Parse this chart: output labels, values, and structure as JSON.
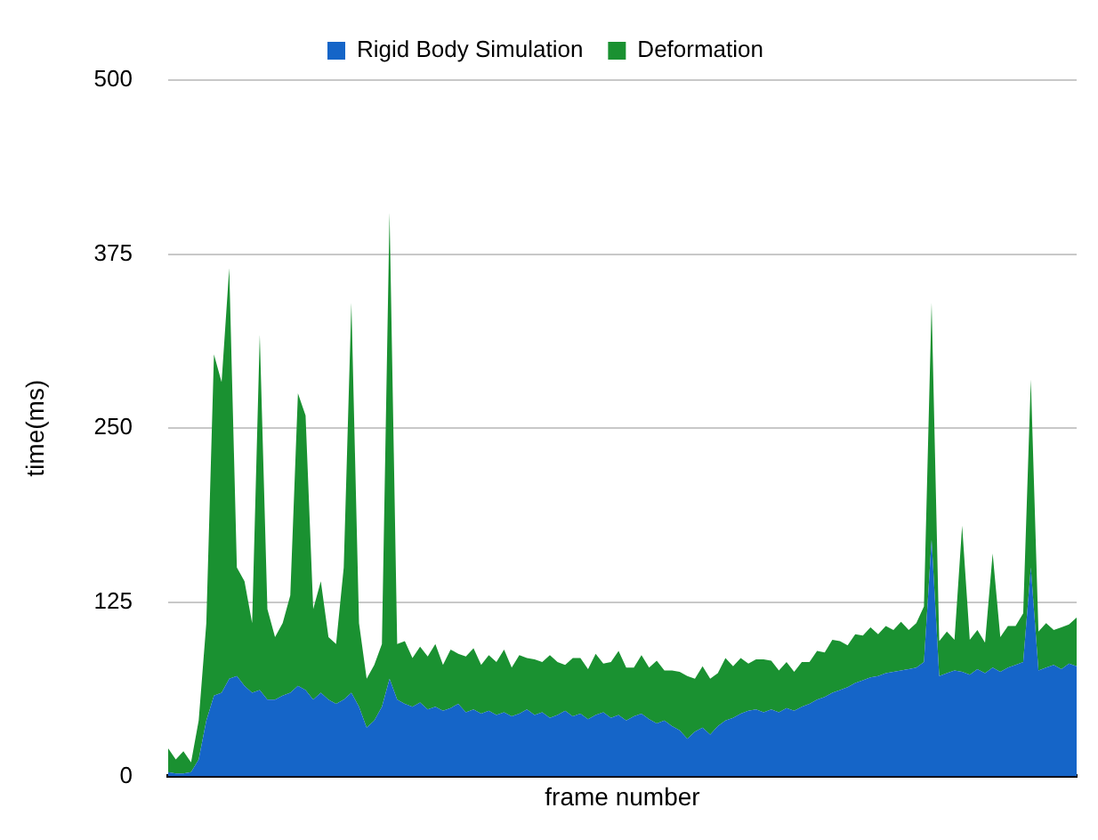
{
  "chart_data": {
    "type": "area",
    "stacked": true,
    "xlabel": "frame number",
    "ylabel": "time(ms)",
    "legend": "top",
    "grid": "y",
    "tick_labels": "y",
    "ylim": [
      0,
      500
    ],
    "yticks": [
      0,
      125,
      250,
      375,
      500
    ],
    "categories": [
      null,
      null,
      null,
      null,
      null,
      null,
      null,
      null,
      null,
      null,
      null,
      null,
      null,
      null,
      null,
      null,
      null,
      null,
      null,
      null,
      null,
      null,
      null,
      null,
      null,
      null,
      null,
      null,
      null,
      null,
      null,
      null,
      null,
      null,
      null,
      null,
      null,
      null,
      null,
      null,
      null,
      null,
      null,
      null,
      null,
      null,
      null,
      null,
      null,
      null,
      null,
      null,
      null,
      null,
      null,
      null,
      null,
      null,
      null,
      null,
      null,
      null,
      null,
      null,
      null,
      null,
      null,
      null,
      null,
      null,
      null,
      null,
      null,
      null,
      null,
      null,
      null,
      null,
      null,
      null,
      null,
      null,
      null,
      null,
      null,
      null,
      null,
      null,
      null,
      null,
      null,
      null,
      null,
      null,
      null,
      null,
      null,
      null,
      null,
      null,
      null,
      null,
      null,
      null,
      null,
      null,
      null,
      null,
      null,
      null,
      null,
      null,
      null,
      null,
      null,
      null,
      null,
      null,
      null,
      null
    ],
    "series": [
      {
        "name": "Rigid Body Simulation",
        "color": "#1565c8",
        "values": [
          3,
          2,
          2,
          3,
          12,
          40,
          58,
          60,
          70,
          72,
          65,
          60,
          62,
          55,
          55,
          58,
          60,
          65,
          62,
          55,
          60,
          55,
          52,
          55,
          60,
          50,
          35,
          40,
          50,
          70,
          55,
          52,
          50,
          53,
          48,
          50,
          47,
          49,
          52,
          46,
          48,
          45,
          47,
          44,
          46,
          43,
          45,
          48,
          44,
          46,
          42,
          44,
          47,
          43,
          45,
          41,
          44,
          46,
          42,
          44,
          40,
          43,
          45,
          41,
          38,
          40,
          36,
          33,
          27,
          32,
          35,
          30,
          36,
          40,
          42,
          45,
          47,
          48,
          46,
          48,
          46,
          49,
          47,
          50,
          52,
          55,
          57,
          60,
          62,
          64,
          67,
          69,
          71,
          72,
          74,
          75,
          76,
          77,
          78,
          82,
          170,
          72,
          74,
          76,
          75,
          73,
          77,
          74,
          78,
          75,
          78,
          80,
          82,
          150,
          76,
          78,
          80,
          77,
          81,
          79
        ]
      },
      {
        "name": "Deformation",
        "color": "#1a9131",
        "values": [
          17,
          10,
          16,
          7,
          28,
          70,
          245,
          223,
          295,
          78,
          75,
          50,
          255,
          65,
          45,
          52,
          70,
          210,
          197,
          65,
          80,
          45,
          43,
          95,
          280,
          60,
          35,
          40,
          45,
          335,
          40,
          45,
          35,
          40,
          38,
          45,
          33,
          42,
          36,
          40,
          44,
          35,
          40,
          38,
          45,
          35,
          42,
          37,
          40,
          36,
          45,
          38,
          33,
          42,
          40,
          36,
          44,
          35,
          40,
          46,
          38,
          35,
          42,
          37,
          45,
          36,
          40,
          42,
          45,
          38,
          44,
          40,
          38,
          45,
          37,
          40,
          34,
          36,
          38,
          35,
          30,
          33,
          28,
          32,
          30,
          35,
          32,
          38,
          35,
          30,
          35,
          32,
          36,
          30,
          34,
          30,
          35,
          28,
          32,
          40,
          170,
          25,
          30,
          22,
          105,
          25,
          28,
          22,
          82,
          25,
          30,
          28,
          35,
          135,
          28,
          32,
          25,
          30,
          28,
          35
        ]
      }
    ]
  }
}
